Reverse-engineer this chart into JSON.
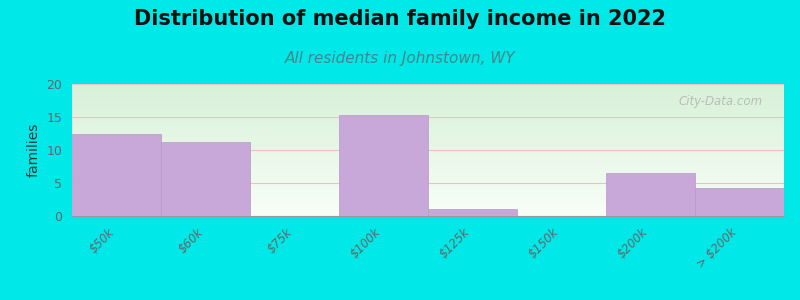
{
  "title": "Distribution of median family income in 2022",
  "subtitle": "All residents in Johnstown, WY",
  "ylabel": "families",
  "categories": [
    "$50k",
    "$60k",
    "$75k",
    "$100k",
    "$125k",
    "$150k",
    "$200k",
    "> $200k"
  ],
  "values": [
    12.5,
    11.2,
    0.0,
    15.3,
    1.0,
    0.0,
    6.5,
    4.2
  ],
  "bar_color": "#c8a8d8",
  "bar_edge_color": "#b898c8",
  "ylim": [
    0,
    20
  ],
  "yticks": [
    0,
    5,
    10,
    15,
    20
  ],
  "background_color": "#00e8e8",
  "plot_bg_color_topleft": "#d8f0d8",
  "plot_bg_color_topright": "#e8f5e8",
  "plot_bg_color_bottom": "#f8fdf8",
  "grid_color": "#f0c0c0",
  "title_fontsize": 15,
  "subtitle_fontsize": 11,
  "subtitle_color": "#448888",
  "watermark": "City-Data.com",
  "tick_label_color": "#666666",
  "ylabel_color": "#333333",
  "bar_width": 1.0
}
